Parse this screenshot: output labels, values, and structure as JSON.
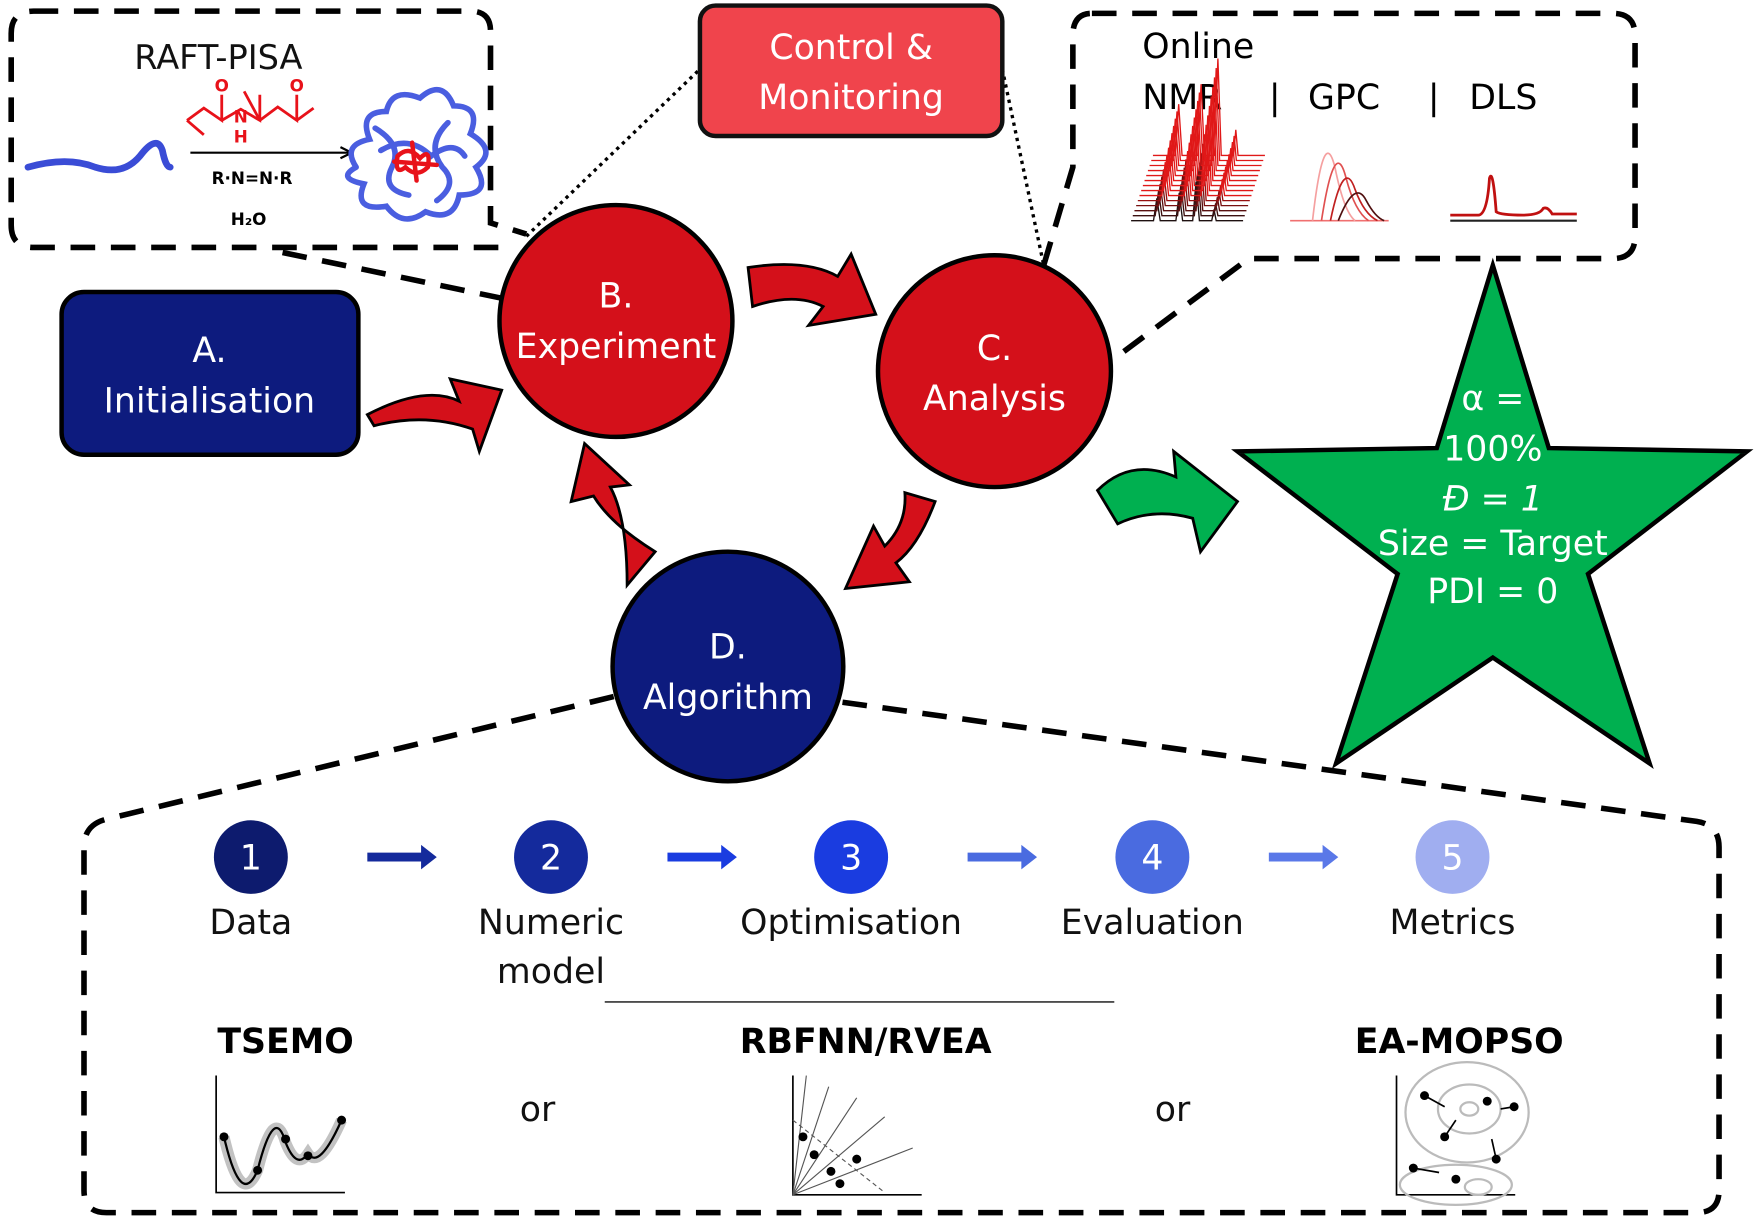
{
  "colors": {
    "red": "#d4101a",
    "navy": "#0d1b7e",
    "green": "#00b050",
    "control": "#f0444c"
  },
  "raft": {
    "title": "RAFT-PISA",
    "o1": "O",
    "o2": "O",
    "nh_n": "N",
    "nh_h": "H",
    "initiator": "R·N=N·R",
    "solvent": "H₂O"
  },
  "control": {
    "line1": "Control &",
    "line2": "Monitoring"
  },
  "online": {
    "title": "Online",
    "nmr": "NMR",
    "sep1": "|",
    "gpc": "GPC",
    "sep2": "|",
    "dls": "DLS"
  },
  "nodes": {
    "a": {
      "line1": "A.",
      "line2": "Initialisation"
    },
    "b": {
      "line1": "B.",
      "line2": "Experiment"
    },
    "c": {
      "line1": "C.",
      "line2": "Analysis"
    },
    "d": {
      "line1": "D.",
      "line2": "Algorithm"
    }
  },
  "target": {
    "l1": "α =",
    "l2": "100%",
    "l3": "Đ = 1",
    "l4": "Size = Target",
    "l5": "PDI = 0"
  },
  "steps": [
    {
      "num": "1",
      "label": "Data",
      "label2": "",
      "color": "#0d1b6e"
    },
    {
      "num": "2",
      "label": "Numeric",
      "label2": "model",
      "color": "#142a9c"
    },
    {
      "num": "3",
      "label": "Optimisation",
      "label2": "",
      "color": "#1a3ce0"
    },
    {
      "num": "4",
      "label": "Evaluation",
      "label2": "",
      "color": "#4a6be0"
    },
    {
      "num": "5",
      "label": "Metrics",
      "label2": "",
      "color": "#a0aef0"
    }
  ],
  "algorithms": {
    "a1": "TSEMO",
    "or1": "or",
    "a2": "RBFNN/RVEA",
    "or2": "or",
    "a3": "EA-MOPSO"
  }
}
